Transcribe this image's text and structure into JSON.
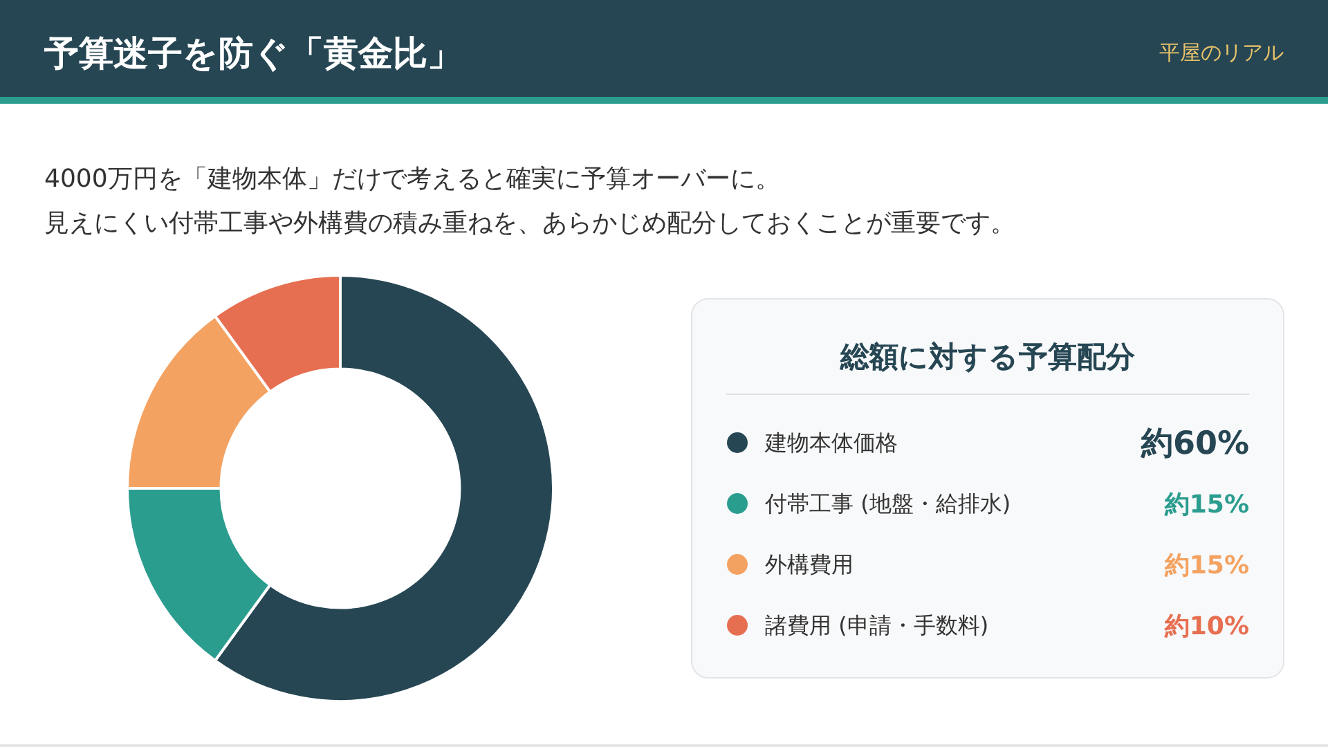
{
  "chart_data": {
    "type": "donut",
    "title": "予算迷子を防ぐ「黄金比」",
    "subtitle": "4000万円を「建物本体」だけで考えると確実に予算オーバーに。見えにくい付帯工事や外構費の積み重ねを、あらかじめ配分しておくことが重要です。",
    "annotations": [
      "平屋のリアル"
    ],
    "legend_title": "総額に対する予算配分",
    "categories": [
      "建物本体価格",
      "付帯工事 (地盤・給排水)",
      "外構費用",
      "諸費用 (申請・手数料)"
    ],
    "values": [
      60,
      15,
      15,
      10
    ],
    "colors": [
      "#264653",
      "#2a9d8f",
      "#f4a261",
      "#e76f51"
    ],
    "value_labels": [
      "約60%",
      "約15%",
      "約15%",
      "約10%"
    ],
    "legend": "right"
  }
}
